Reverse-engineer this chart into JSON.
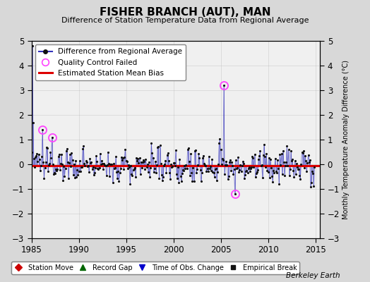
{
  "title": "FISHER BRANCH (AUT), MAN",
  "subtitle": "Difference of Station Temperature Data from Regional Average",
  "ylabel_right": "Monthly Temperature Anomaly Difference (°C)",
  "xlim": [
    1985,
    2015.5
  ],
  "ylim": [
    -3,
    5
  ],
  "yticks_left": [
    -3,
    -2,
    -1,
    0,
    1,
    2,
    3,
    4,
    5
  ],
  "yticks_right": [
    -3,
    -2,
    -1,
    0,
    1,
    2,
    3,
    4,
    5
  ],
  "xticks": [
    1985,
    1990,
    1995,
    2000,
    2005,
    2010,
    2015
  ],
  "bias_line": -0.05,
  "background_color": "#d8d8d8",
  "plot_bg_color": "#f0f0f0",
  "line_color": "#3333bb",
  "dot_color": "#111111",
  "bias_color": "#dd0000",
  "qc_color": "#ff44ff",
  "legend1_labels": [
    "Difference from Regional Average",
    "Quality Control Failed",
    "Estimated Station Mean Bias"
  ],
  "legend2_labels": [
    "Station Move",
    "Record Gap",
    "Time of Obs. Change",
    "Empirical Break"
  ],
  "legend2_colors": [
    "#cc0000",
    "#006600",
    "#0000cc",
    "#111111"
  ],
  "watermark": "Berkeley Earth",
  "seed": 137,
  "n_years": 30,
  "start_year": 1985,
  "spike_month": 1,
  "spike_val": 4.8,
  "qc_months": [
    14,
    26,
    244,
    258
  ],
  "qc_vals": [
    1.4,
    1.1,
    3.2,
    -1.2
  ],
  "toc_year": 2006.25,
  "bias_y": -0.05
}
